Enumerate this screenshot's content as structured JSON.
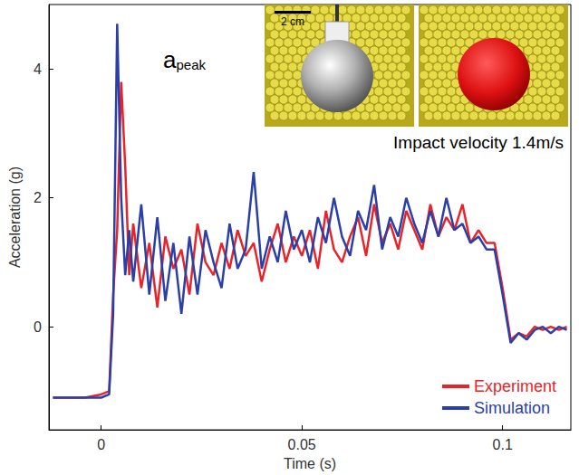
{
  "chart_data": {
    "type": "line",
    "xlabel": "Time (s)",
    "ylabel": "Acceleration (g)",
    "x": [
      -0.012,
      -0.008,
      -0.004,
      0,
      0.002,
      0.003,
      0.004,
      0.005,
      0.006,
      0.007,
      0.008,
      0.01,
      0.012,
      0.014,
      0.016,
      0.018,
      0.02,
      0.022,
      0.024,
      0.026,
      0.028,
      0.03,
      0.032,
      0.034,
      0.036,
      0.038,
      0.04,
      0.042,
      0.044,
      0.046,
      0.048,
      0.05,
      0.052,
      0.054,
      0.056,
      0.058,
      0.06,
      0.062,
      0.064,
      0.066,
      0.068,
      0.07,
      0.072,
      0.074,
      0.076,
      0.078,
      0.08,
      0.082,
      0.084,
      0.086,
      0.088,
      0.09,
      0.092,
      0.094,
      0.096,
      0.098,
      0.1,
      0.102,
      0.104,
      0.106,
      0.108,
      0.11,
      0.112,
      0.114,
      0.116
    ],
    "series": [
      {
        "name": "Experiment",
        "color": "#e8242b",
        "marker": "none",
        "line_style": "solid",
        "values": [
          -1.1,
          -1.1,
          -1.1,
          -1.05,
          -1.0,
          0.5,
          1.5,
          3.8,
          2.5,
          0.8,
          1.6,
          0.6,
          1.3,
          0.3,
          1.4,
          0.9,
          1.2,
          0.5,
          1.6,
          1.0,
          0.8,
          1.3,
          0.9,
          1.5,
          1.1,
          1.3,
          0.7,
          1.2,
          1.6,
          1.0,
          1.4,
          1.1,
          1.5,
          0.9,
          1.8,
          1.2,
          1.0,
          1.4,
          1.7,
          1.1,
          1.9,
          1.3,
          1.6,
          1.2,
          1.8,
          1.5,
          1.2,
          1.9,
          1.4,
          1.7,
          1.5,
          1.9,
          1.3,
          1.5,
          1.3,
          1.3,
          0.6,
          -0.2,
          -0.1,
          -0.15,
          0.0,
          -0.05,
          0.0,
          -0.05,
          0.0
        ]
      },
      {
        "name": "Simulation",
        "color": "#2b3fa8",
        "marker": "none",
        "line_style": "solid",
        "values": [
          -1.1,
          -1.1,
          -1.1,
          -1.1,
          -1.05,
          0.2,
          4.7,
          2.0,
          0.8,
          1.5,
          0.7,
          1.9,
          0.5,
          1.7,
          0.4,
          1.3,
          0.2,
          1.4,
          0.5,
          1.5,
          1.0,
          0.6,
          1.6,
          0.9,
          1.2,
          2.4,
          0.9,
          1.4,
          1.0,
          1.8,
          1.2,
          1.5,
          1.0,
          1.7,
          1.3,
          2.0,
          1.4,
          1.1,
          1.8,
          1.5,
          2.2,
          1.2,
          1.7,
          1.4,
          2.0,
          1.6,
          1.3,
          1.8,
          1.4,
          2.0,
          1.5,
          1.6,
          1.3,
          1.4,
          1.2,
          1.2,
          0.5,
          -0.25,
          -0.1,
          -0.2,
          -0.05,
          0.0,
          -0.1,
          0.0,
          -0.05
        ]
      }
    ],
    "xlim": [
      -0.013,
      0.117
    ],
    "xticks": [
      0,
      0.05,
      0.1
    ],
    "ylim": [
      -1.6,
      5.0
    ],
    "yticks": [
      0,
      2,
      4
    ],
    "grid": false,
    "legend": "lower right",
    "annotations": {
      "peak": {
        "text": "a",
        "subscript": "peak"
      },
      "velocity": "Impact velocity 1.4m/s",
      "scale_bar": "2 cm"
    }
  }
}
